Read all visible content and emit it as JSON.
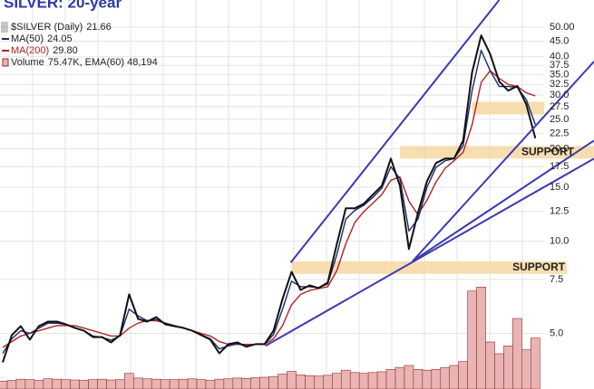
{
  "chart_data": {
    "type": "line",
    "title": "SILVER: 20-year",
    "log_scale": true,
    "grid": true,
    "xlim": [
      0,
      65.5
    ],
    "ylim": [
      3.29,
      61.3
    ],
    "yticks": [
      {
        "value": 50,
        "label": "50.00"
      },
      {
        "value": 45,
        "label": "45.0"
      },
      {
        "value": 40,
        "label": "40.0"
      },
      37.5,
      {
        "value": 35,
        "label": "35.0"
      },
      32.5,
      {
        "value": 30,
        "label": "30.0"
      },
      27.5,
      {
        "value": 25,
        "label": "25.0"
      },
      22.5,
      {
        "value": 20,
        "label": "20.0"
      },
      17.5,
      {
        "value": 15,
        "label": "15.0"
      },
      12.5,
      {
        "value": 10,
        "label": "10.0"
      },
      7.5,
      {
        "value": 5,
        "label": "5.0"
      }
    ],
    "series": [
      {
        "name": "$SILVER (Daily)",
        "legend_value": "21.66",
        "color": "#111111",
        "values": [
          4.02,
          4.93,
          5.28,
          4.77,
          5.28,
          5.46,
          5.46,
          5.35,
          5.21,
          5.1,
          4.86,
          4.86,
          4.67,
          4.93,
          6.7,
          5.57,
          5.46,
          5.65,
          5.35,
          5.28,
          5.21,
          5.1,
          4.93,
          4.77,
          4.3,
          4.61,
          4.67,
          4.52,
          4.61,
          4.61,
          5.1,
          6.48,
          7.94,
          6.93,
          7.17,
          7.03,
          7.32,
          9.75,
          12.8,
          12.8,
          13.25,
          14.18,
          15.17,
          18.6,
          15.17,
          9.42,
          12.37,
          15.7,
          18.0,
          18.6,
          18.6,
          21.3,
          35.6,
          47.0,
          40.8,
          33.2,
          31.0,
          32.1,
          28.0,
          21.7
        ]
      },
      {
        "name": "MA(50)",
        "legend_value": "24.05",
        "color": "#1a2a6c",
        "values": [
          4.3,
          4.8,
          5.1,
          5.0,
          5.2,
          5.4,
          5.4,
          5.35,
          5.2,
          5.1,
          4.9,
          4.85,
          4.75,
          4.9,
          6.0,
          5.7,
          5.5,
          5.55,
          5.4,
          5.3,
          5.2,
          5.1,
          4.95,
          4.8,
          4.45,
          4.55,
          4.62,
          4.55,
          4.6,
          4.62,
          4.95,
          6.0,
          7.4,
          7.1,
          7.1,
          7.05,
          7.25,
          9.0,
          11.8,
          12.6,
          13.1,
          13.9,
          14.9,
          17.5,
          16.0,
          10.8,
          11.8,
          15.0,
          17.4,
          18.3,
          18.6,
          20.5,
          31.0,
          42.0,
          36.0,
          32.0,
          32.0,
          31.8,
          29.0,
          24.05
        ]
      },
      {
        "name": "MA(200)",
        "legend_value": "29.80",
        "color": "#b22222",
        "values": [
          4.5,
          4.7,
          4.9,
          5.0,
          5.1,
          5.2,
          5.3,
          5.3,
          5.3,
          5.2,
          5.1,
          5.0,
          4.9,
          4.9,
          5.2,
          5.4,
          5.5,
          5.5,
          5.4,
          5.3,
          5.2,
          5.1,
          5.0,
          4.9,
          4.7,
          4.6,
          4.6,
          4.6,
          4.6,
          4.6,
          4.8,
          5.3,
          6.2,
          6.7,
          6.9,
          7.0,
          7.1,
          8.0,
          9.8,
          11.5,
          12.5,
          13.3,
          14.2,
          15.8,
          16.2,
          13.5,
          12.2,
          13.6,
          15.6,
          17.3,
          18.3,
          19.5,
          24.0,
          33.0,
          36.0,
          34.0,
          32.5,
          32.0,
          30.5,
          29.8
        ]
      }
    ],
    "volume": {
      "name": "Volume",
      "legend_value": "75.47K, EMA(60) 48,194",
      "color": "#9c2b2b",
      "fill": "#e8b4b4",
      "ylim": [
        0,
        300
      ],
      "values": [
        20,
        22,
        25,
        24,
        22,
        26,
        25,
        24,
        23,
        22,
        24,
        25,
        23,
        24,
        40,
        28,
        26,
        25,
        24,
        24,
        25,
        26,
        24,
        22,
        25,
        26,
        28,
        27,
        29,
        30,
        32,
        38,
        45,
        36,
        34,
        33,
        35,
        40,
        48,
        42,
        40,
        42,
        44,
        50,
        55,
        60,
        50,
        48,
        50,
        55,
        60,
        70,
        250,
        260,
        120,
        90,
        110,
        180,
        100,
        130
      ]
    },
    "trendlines": {
      "color": "#3a3ab0",
      "lines": [
        {
          "x": [
            31.9,
            55.0
          ],
          "y": [
            8.51,
            61.3
          ]
        },
        {
          "x": [
            29.1,
            65.5
          ],
          "y": [
            4.55,
            18.6
          ]
        },
        {
          "x": [
            45.4,
            65.5
          ],
          "y": [
            8.6,
            38.6
          ]
        },
        {
          "x": [
            45.4,
            65.5
          ],
          "y": [
            8.6,
            21.3
          ]
        }
      ]
    },
    "bands": {
      "color": "#f7d7a3",
      "items": [
        {
          "value": 8.2,
          "range": [
            32,
            62.5
          ],
          "label": "SUPPORT"
        },
        {
          "value": 19.5,
          "range": [
            44,
            65.5
          ],
          "label": "SUPPORT"
        },
        {
          "value": 27.2,
          "range": [
            52,
            60
          ]
        }
      ]
    }
  }
}
